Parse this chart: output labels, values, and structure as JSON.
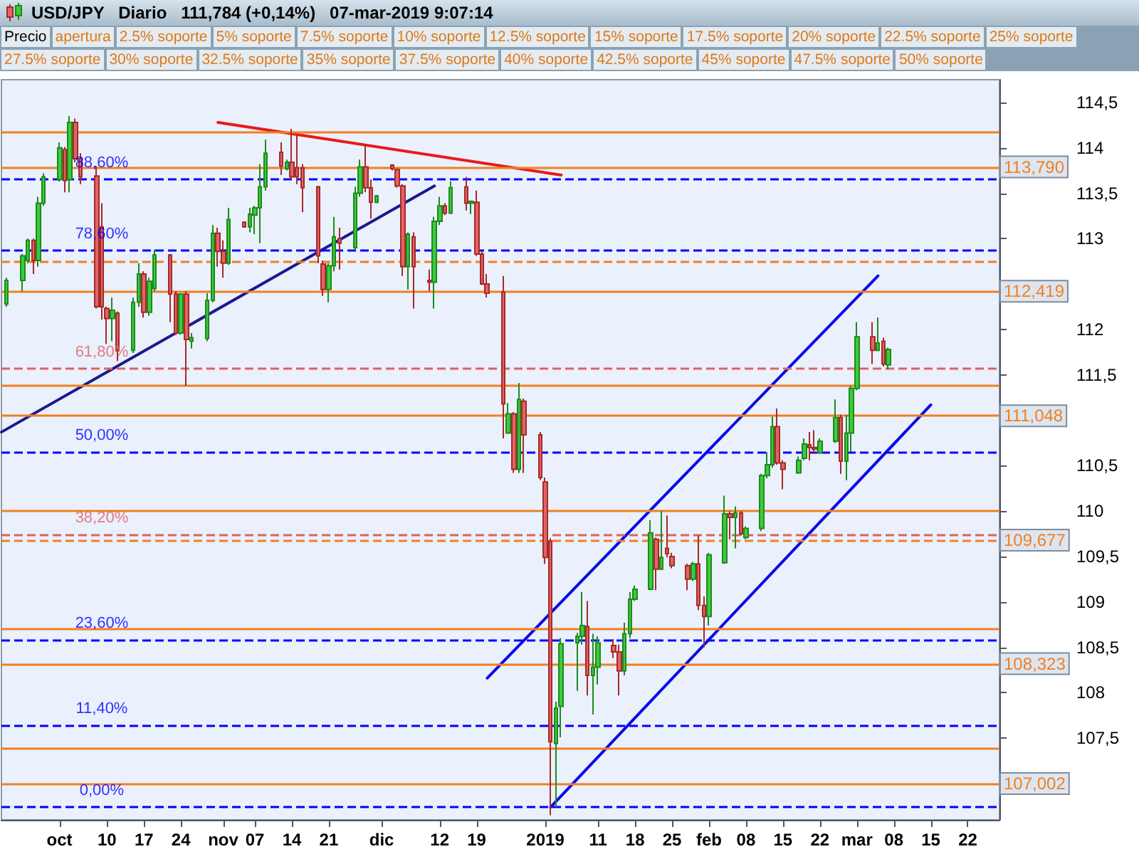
{
  "chart_data": {
    "type": "candlestick",
    "title": "USD/JPY   Diario   111,784 (+0,14%)   07-mar-2019 9:07:14",
    "x": [
      "2018-09-21",
      "2018-09-24",
      "2018-09-25",
      "2018-09-26",
      "2018-09-27",
      "2018-09-28",
      "2018-10-01",
      "2018-10-02",
      "2018-10-03",
      "2018-10-04",
      "2018-10-05",
      "2018-10-08",
      "2018-10-09",
      "2018-10-10",
      "2018-10-11",
      "2018-10-12",
      "2018-10-15",
      "2018-10-16",
      "2018-10-17",
      "2018-10-18",
      "2018-10-19",
      "2018-10-22",
      "2018-10-23",
      "2018-10-24",
      "2018-10-25",
      "2018-10-26",
      "2018-10-29",
      "2018-10-30",
      "2018-10-31",
      "2018-11-01",
      "2018-11-02",
      "2018-11-05",
      "2018-11-06",
      "2018-11-07",
      "2018-11-08",
      "2018-11-09",
      "2018-11-12",
      "2018-11-13",
      "2018-11-14",
      "2018-11-15",
      "2018-11-16",
      "2018-11-19",
      "2018-11-20",
      "2018-11-21",
      "2018-11-22",
      "2018-11-23",
      "2018-11-26",
      "2018-11-27",
      "2018-11-28",
      "2018-11-29",
      "2018-11-30",
      "2018-12-03",
      "2018-12-04",
      "2018-12-05",
      "2018-12-06",
      "2018-12-07",
      "2018-12-10",
      "2018-12-11",
      "2018-12-12",
      "2018-12-13",
      "2018-12-14",
      "2018-12-17",
      "2018-12-18",
      "2018-12-19",
      "2018-12-20",
      "2018-12-21",
      "2018-12-24",
      "2018-12-25",
      "2018-12-26",
      "2018-12-27",
      "2018-12-28",
      "2018-12-31",
      "2019-01-01",
      "2019-01-02",
      "2019-01-03",
      "2019-01-04",
      "2019-01-07",
      "2019-01-08",
      "2019-01-09",
      "2019-01-10",
      "2019-01-11",
      "2019-01-14",
      "2019-01-15",
      "2019-01-16",
      "2019-01-17",
      "2019-01-18",
      "2019-01-21",
      "2019-01-22",
      "2019-01-23",
      "2019-01-24",
      "2019-01-25",
      "2019-01-28",
      "2019-01-29",
      "2019-01-30",
      "2019-01-31",
      "2019-02-01",
      "2019-02-04",
      "2019-02-05",
      "2019-02-06",
      "2019-02-07",
      "2019-02-08",
      "2019-02-11",
      "2019-02-12",
      "2019-02-13",
      "2019-02-14",
      "2019-02-15",
      "2019-02-18",
      "2019-02-19",
      "2019-02-20",
      "2019-02-21",
      "2019-02-22",
      "2019-02-25",
      "2019-02-26",
      "2019-02-27",
      "2019-02-28",
      "2019-03-01",
      "2019-03-04",
      "2019-03-05",
      "2019-03-06",
      "2019-03-07"
    ],
    "ohlc": [
      [
        112.28,
        112.57,
        112.25,
        112.54
      ],
      [
        112.54,
        112.83,
        112.42,
        112.81
      ],
      [
        112.76,
        113.0,
        112.73,
        112.98
      ],
      [
        112.98,
        113.0,
        112.61,
        112.76
      ],
      [
        112.76,
        113.46,
        112.69,
        113.39
      ],
      [
        113.39,
        113.72,
        113.36,
        113.68
      ],
      [
        113.65,
        114.06,
        113.63,
        114.0
      ],
      [
        113.98,
        114.01,
        113.51,
        113.64
      ],
      [
        113.65,
        114.35,
        113.51,
        114.28
      ],
      [
        114.28,
        114.32,
        113.84,
        113.88
      ],
      [
        113.88,
        113.94,
        113.6,
        113.68
      ],
      [
        113.69,
        113.8,
        112.23,
        112.25
      ],
      [
        113.13,
        113.39,
        112.11,
        112.25
      ],
      [
        112.23,
        112.25,
        111.84,
        112.12
      ],
      [
        112.12,
        112.35,
        111.87,
        112.21
      ],
      [
        112.18,
        112.2,
        111.65,
        111.77
      ],
      [
        111.77,
        112.35,
        111.74,
        112.3
      ],
      [
        112.3,
        112.73,
        112.25,
        112.61
      ],
      [
        112.61,
        112.64,
        112.13,
        112.19
      ],
      [
        112.19,
        112.57,
        112.15,
        112.53
      ],
      [
        112.45,
        112.88,
        112.42,
        112.82
      ],
      [
        112.82,
        112.83,
        112.08,
        112.39
      ],
      [
        112.39,
        112.42,
        111.94,
        111.96
      ],
      [
        111.96,
        112.4,
        111.94,
        112.39
      ],
      [
        112.39,
        112.42,
        111.38,
        111.89
      ],
      [
        111.87,
        111.96,
        111.79,
        111.91
      ],
      [
        111.9,
        112.4,
        111.87,
        112.32
      ],
      [
        112.32,
        113.15,
        112.3,
        113.06
      ],
      [
        113.06,
        113.12,
        112.69,
        112.86
      ],
      [
        112.86,
        112.98,
        112.57,
        112.73
      ],
      [
        112.73,
        113.34,
        112.71,
        113.21
      ],
      [
        113.18,
        113.19,
        113.12,
        113.13
      ],
      [
        113.13,
        113.34,
        113.07,
        113.27
      ],
      [
        113.26,
        113.36,
        113.05,
        113.34
      ],
      [
        113.34,
        113.82,
        112.95,
        113.57
      ],
      [
        113.57,
        114.09,
        113.53,
        113.94
      ],
      [
        113.95,
        114.06,
        113.7,
        113.8
      ],
      [
        113.77,
        113.87,
        113.75,
        113.84
      ],
      [
        113.84,
        114.21,
        113.65,
        113.68
      ],
      [
        113.78,
        114.14,
        113.6,
        113.68
      ],
      [
        113.78,
        113.82,
        113.29,
        113.56
      ],
      [
        113.57,
        113.58,
        112.73,
        112.81
      ],
      [
        112.72,
        112.76,
        112.37,
        112.44
      ],
      [
        112.44,
        112.73,
        112.3,
        112.7
      ],
      [
        112.7,
        113.24,
        112.64,
        113.02
      ],
      [
        113.0,
        113.12,
        112.66,
        112.95
      ],
      [
        112.9,
        113.57,
        112.88,
        113.5
      ],
      [
        113.5,
        113.87,
        113.46,
        113.79
      ],
      [
        113.79,
        114.04,
        113.51,
        113.56
      ],
      [
        113.56,
        113.65,
        113.22,
        113.4
      ],
      [
        113.4,
        113.48,
        113.39,
        113.47
      ],
      [
        113.81,
        113.82,
        113.75,
        113.77
      ],
      [
        113.76,
        113.77,
        113.56,
        113.58
      ],
      [
        113.58,
        113.6,
        112.59,
        112.69
      ],
      [
        112.69,
        113.07,
        112.44,
        113.05
      ],
      [
        113.02,
        113.07,
        112.23,
        112.69
      ],
      [
        112.54,
        112.66,
        112.42,
        112.52
      ],
      [
        112.52,
        113.24,
        112.23,
        113.19
      ],
      [
        113.19,
        113.46,
        113.15,
        113.36
      ],
      [
        113.36,
        113.39,
        113.26,
        113.28
      ],
      [
        113.28,
        113.63,
        113.27,
        113.56
      ],
      [
        113.57,
        113.68,
        113.31,
        113.39
      ],
      [
        113.39,
        113.42,
        113.27,
        113.41
      ],
      [
        113.4,
        113.53,
        112.81,
        112.83
      ],
      [
        112.83,
        112.86,
        112.49,
        112.5
      ],
      [
        112.5,
        112.61,
        112.35,
        112.4
      ],
      [
        112.41,
        112.59,
        110.8,
        111.18
      ],
      [
        110.86,
        111.19,
        110.85,
        111.07
      ],
      [
        111.07,
        111.09,
        110.42,
        110.46
      ],
      [
        110.46,
        111.41,
        110.42,
        111.23
      ],
      [
        111.21,
        111.24,
        110.42,
        110.84
      ],
      [
        110.84,
        110.87,
        110.34,
        110.37
      ],
      [
        110.32,
        110.37,
        109.42,
        109.49
      ],
      [
        109.67,
        109.7,
        106.65,
        107.46
      ],
      [
        107.44,
        107.9,
        106.74,
        107.83
      ],
      [
        107.85,
        108.6,
        107.51,
        108.54
      ],
      [
        108.55,
        108.66,
        108.02,
        108.62
      ],
      [
        108.62,
        109.11,
        108.53,
        108.74
      ],
      [
        108.73,
        109.01,
        107.97,
        108.19
      ],
      [
        108.19,
        108.65,
        107.76,
        108.28
      ],
      [
        108.28,
        108.62,
        108.09,
        108.55
      ],
      [
        108.52,
        108.59,
        108.38,
        108.45
      ],
      [
        108.45,
        108.53,
        107.97,
        108.24
      ],
      [
        108.24,
        108.77,
        108.19,
        108.65
      ],
      [
        108.65,
        109.11,
        108.6,
        109.03
      ],
      [
        109.03,
        109.18,
        109.01,
        109.14
      ],
      [
        109.14,
        109.9,
        109.13,
        109.76
      ],
      [
        109.69,
        109.71,
        109.13,
        109.36
      ],
      [
        109.36,
        110.0,
        109.35,
        109.49
      ],
      [
        109.59,
        109.95,
        109.49,
        109.53
      ],
      [
        109.5,
        109.54,
        109.37,
        109.4
      ],
      [
        109.4,
        109.42,
        109.13,
        109.25
      ],
      [
        109.25,
        109.44,
        109.23,
        109.42
      ],
      [
        109.42,
        109.73,
        108.91,
        108.96
      ],
      [
        108.96,
        109.06,
        108.5,
        108.84
      ],
      [
        108.84,
        109.54,
        108.74,
        109.52
      ],
      [
        109.43,
        110.17,
        109.42,
        109.97
      ],
      [
        109.97,
        110.0,
        109.69,
        109.93
      ],
      [
        109.93,
        110.05,
        109.59,
        109.98
      ],
      [
        109.98,
        110.0,
        109.73,
        109.75
      ],
      [
        109.71,
        109.83,
        109.69,
        109.81
      ],
      [
        109.81,
        110.41,
        109.78,
        110.39
      ],
      [
        110.39,
        110.65,
        110.36,
        110.51
      ],
      [
        110.51,
        111.04,
        110.48,
        110.93
      ],
      [
        110.93,
        111.13,
        110.51,
        110.53
      ],
      [
        110.53,
        110.56,
        110.24,
        110.46
      ],
      [
        110.42,
        110.6,
        110.41,
        110.56
      ],
      [
        110.58,
        110.8,
        110.56,
        110.74
      ],
      [
        110.73,
        110.87,
        110.56,
        110.7
      ],
      [
        110.7,
        110.89,
        110.63,
        110.68
      ],
      [
        110.64,
        110.8,
        110.63,
        110.77
      ],
      [
        110.77,
        111.23,
        110.75,
        111.03
      ],
      [
        111.03,
        111.06,
        110.41,
        110.55
      ],
      [
        110.55,
        111.06,
        110.34,
        110.86
      ],
      [
        110.86,
        111.38,
        110.65,
        111.35
      ],
      [
        111.35,
        112.08,
        111.33,
        111.92
      ],
      [
        111.92,
        112.08,
        111.62,
        111.77
      ],
      [
        111.77,
        112.13,
        111.76,
        111.85
      ],
      [
        111.87,
        111.91,
        111.59,
        111.62
      ],
      [
        111.61,
        111.8,
        111.56,
        111.78
      ]
    ],
    "series": [
      {
        "type": "line",
        "color": "#e81a1a",
        "x": [
          "2018-10-31",
          "2019-01-04"
        ],
        "values": [
          114.28,
          113.7
        ]
      },
      {
        "type": "line",
        "color": "#1a1a8c",
        "x": [
          "2018-09-20",
          "2018-12-11"
        ],
        "values": [
          110.87,
          113.58
        ]
      },
      {
        "type": "line",
        "color": "#0a0ae6",
        "x": [
          "2018-12-21",
          "2019-03-05"
        ],
        "values": [
          108.16,
          112.59
        ]
      },
      {
        "type": "line",
        "color": "#0a0ae6",
        "x": [
          "2019-01-02",
          "2019-03-15"
        ],
        "values": [
          106.74,
          111.17
        ]
      }
    ],
    "xlim": [
      "2018-09-20",
      "2019-03-28"
    ],
    "xticks": [
      {
        "value": "2018-10-01",
        "label": "oct"
      },
      {
        "value": "2018-10-10",
        "label": "10"
      },
      {
        "value": "2018-10-17",
        "label": "17"
      },
      {
        "value": "2018-10-24",
        "label": "24"
      },
      {
        "value": "2018-11-01",
        "label": "nov"
      },
      {
        "value": "2018-11-07",
        "label": "07"
      },
      {
        "value": "2018-11-14",
        "label": "14"
      },
      {
        "value": "2018-11-21",
        "label": "21"
      },
      {
        "value": "2018-12-01",
        "label": "dic"
      },
      {
        "value": "2018-12-12",
        "label": "12"
      },
      {
        "value": "2018-12-19",
        "label": "19"
      },
      {
        "value": "2019-01-01",
        "label": "2019"
      },
      {
        "value": "2019-01-11",
        "label": "11"
      },
      {
        "value": "2019-01-18",
        "label": "18"
      },
      {
        "value": "2019-01-25",
        "label": "25"
      },
      {
        "value": "2019-02-01",
        "label": "feb"
      },
      {
        "value": "2019-02-08",
        "label": "08"
      },
      {
        "value": "2019-02-15",
        "label": "15"
      },
      {
        "value": "2019-02-22",
        "label": "22"
      },
      {
        "value": "2019-03-01",
        "label": "mar"
      },
      {
        "value": "2019-03-08",
        "label": "08"
      },
      {
        "value": "2019-03-15",
        "label": "15"
      },
      {
        "value": "2019-03-22",
        "label": "22"
      }
    ],
    "ylim": [
      106.6,
      114.75
    ],
    "yticks": [
      {
        "value": 107,
        "label": null
      },
      {
        "value": 107.5,
        "label": "107,5"
      },
      {
        "value": 108,
        "label": "108"
      },
      {
        "value": 108.5,
        "label": "108,5"
      },
      {
        "value": 109,
        "label": "109"
      },
      {
        "value": 109.5,
        "label": "109,5"
      },
      {
        "value": 110,
        "label": "110"
      },
      {
        "value": 110.5,
        "label": "110,5"
      },
      {
        "value": 111,
        "label": null
      },
      {
        "value": 111.5,
        "label": "111,5"
      },
      {
        "value": 112,
        "label": "112"
      },
      {
        "value": 112.5,
        "label": null
      },
      {
        "value": 113,
        "label": "113"
      },
      {
        "value": 113.5,
        "label": "113,5"
      },
      {
        "value": 114,
        "label": "114"
      },
      {
        "value": 114.5,
        "label": "114,5"
      }
    ],
    "ref_lines": [
      {
        "axis": "y",
        "value": 113.65,
        "color": "#0000ff",
        "line_style": "dashed"
      },
      {
        "axis": "y",
        "value": 112.87,
        "color": "#0000ff",
        "line_style": "dashed"
      },
      {
        "axis": "y",
        "value": 111.57,
        "color": "#e06060",
        "line_style": "dashed"
      },
      {
        "axis": "y",
        "value": 110.65,
        "color": "#0000ff",
        "line_style": "dashed"
      },
      {
        "axis": "y",
        "value": 109.74,
        "color": "#e06060",
        "line_style": "dashed"
      },
      {
        "axis": "y",
        "value": 108.58,
        "color": "#0000ff",
        "line_style": "dashed"
      },
      {
        "axis": "y",
        "value": 107.64,
        "color": "#0000ff",
        "line_style": "dashed"
      },
      {
        "axis": "y",
        "value": 106.74,
        "color": "#0000ff",
        "line_style": "dashed"
      },
      {
        "axis": "y",
        "value": 114.17,
        "color": "#f08020",
        "line_style": "solid"
      },
      {
        "axis": "y",
        "value": 112.75,
        "color": "#f08020",
        "line_style": "dashed"
      },
      {
        "axis": "y",
        "value": 111.38,
        "color": "#f08020",
        "line_style": "solid"
      },
      {
        "axis": "y",
        "value": 110.01,
        "color": "#f08020",
        "line_style": "solid"
      },
      {
        "axis": "y",
        "value": 108.7,
        "color": "#f08020",
        "line_style": "solid"
      },
      {
        "axis": "y",
        "value": 107.39,
        "color": "#f08020",
        "line_style": "solid"
      },
      {
        "axis": "y",
        "value": 113.79,
        "label": "113,790",
        "color": "#f08020",
        "line_style": "solid"
      },
      {
        "axis": "y",
        "value": 112.419,
        "label": "112,419",
        "color": "#f08020",
        "line_style": "solid"
      },
      {
        "axis": "y",
        "value": 111.048,
        "label": "111,048",
        "color": "#f08020",
        "line_style": "solid"
      },
      {
        "axis": "y",
        "value": 109.677,
        "label": "109,677",
        "color": "#f08020",
        "line_style": "dashed"
      },
      {
        "axis": "y",
        "value": 108.323,
        "label": "108,323",
        "color": "#f08020",
        "line_style": "solid"
      },
      {
        "axis": "y",
        "value": 107.002,
        "label": "107,002",
        "color": "#f08020",
        "line_style": "solid"
      }
    ],
    "annotations": [
      "Precio",
      "apertura",
      "2.5% soporte",
      "5% soporte",
      "7.5% soporte",
      "10% soporte",
      "12.5% soporte",
      "15% soporte",
      "17.5% soporte",
      "20% soporte",
      "22.5% soporte",
      "25% soporte",
      "27.5% soporte",
      "30% soporte",
      "32.5% soporte",
      "35% soporte",
      "37.5% soporte",
      "40% soporte",
      "42.5% soporte",
      "45% soporte",
      "47.5% soporte",
      "50% soporte",
      {
        "text": "88,60%",
        "x": "2018-10-09",
        "y": 113.65
      },
      {
        "text": "78,60%",
        "x": "2018-10-09",
        "y": 112.87
      },
      {
        "text": "61,80%",
        "x": "2018-10-09",
        "y": 111.57
      },
      {
        "text": "50,00%",
        "x": "2018-10-09",
        "y": 110.65
      },
      {
        "text": "38,20%",
        "x": "2018-10-09",
        "y": 109.74
      },
      {
        "text": "23,60%",
        "x": "2018-10-09",
        "y": 108.58
      },
      {
        "text": "11,40%",
        "x": "2018-10-09",
        "y": 107.64
      },
      {
        "text": "0,00%",
        "x": "2018-10-09",
        "y": 106.74
      }
    ],
    "grid": false
  }
}
